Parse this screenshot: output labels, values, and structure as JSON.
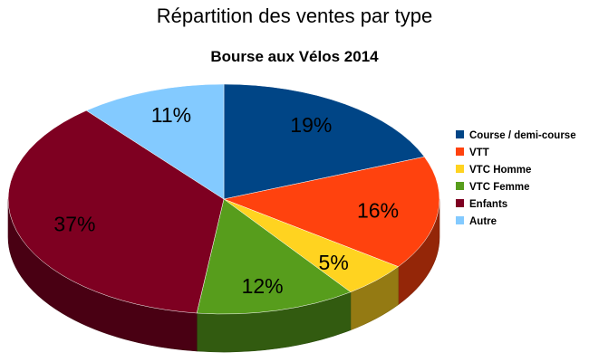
{
  "chart_data": {
    "type": "pie",
    "title": "Répartition des ventes par type",
    "subtitle": "Bourse aux Vélos 2014",
    "categories": [
      "Course / demi-course",
      "VTT",
      "VTC Homme",
      "VTC Femme",
      "Enfants",
      "Autre"
    ],
    "values": [
      19,
      16,
      5,
      12,
      37,
      11
    ],
    "labels": [
      "19%",
      "16%",
      "5%",
      "12%",
      "37%",
      "11%"
    ],
    "colors": [
      "#004586",
      "#ff420e",
      "#ffd320",
      "#579d1c",
      "#7e0021",
      "#83caff"
    ],
    "legend_position": "right"
  }
}
